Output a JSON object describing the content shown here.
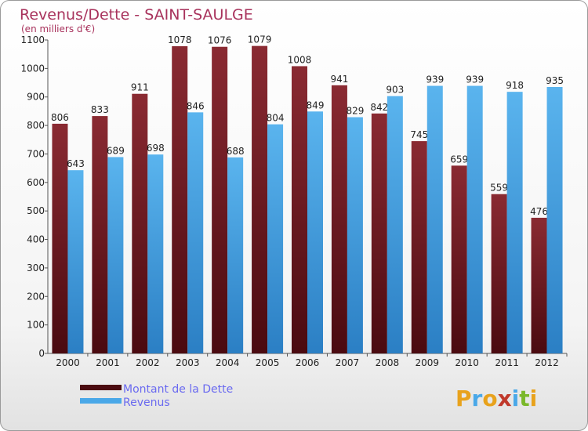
{
  "colors": {
    "debt": "#7a1c26",
    "debt_dark": "#4a0a10",
    "revenue": "#4aa8e8",
    "revenue_dark": "#2b7fc4",
    "title": "#a8325c",
    "legend_text": "#6a6af0"
  },
  "logo": {
    "text": "Proxiti",
    "letters": [
      "P",
      "r",
      "o",
      "x",
      "i",
      "t",
      "i"
    ],
    "letter_colors": [
      "#e8a21c",
      "#4aa8e8",
      "#e8a21c",
      "#c0392b",
      "#4aa8e8",
      "#7ab82a",
      "#e8a21c"
    ]
  },
  "chart_data": {
    "type": "bar",
    "title": "Revenus/Dette - SAINT-SAULGE",
    "subtitle": "(en milliers d'€)",
    "categories": [
      "2000",
      "2001",
      "2002",
      "2003",
      "2004",
      "2005",
      "2006",
      "2007",
      "2008",
      "2009",
      "2010",
      "2011",
      "2012"
    ],
    "series": [
      {
        "name": "Montant de la Dette",
        "values": [
          806,
          833,
          911,
          1078,
          1076,
          1079,
          1008,
          941,
          842,
          745,
          659,
          559,
          476
        ]
      },
      {
        "name": "Revenus",
        "values": [
          643,
          689,
          698,
          846,
          688,
          804,
          849,
          829,
          903,
          939,
          939,
          918,
          935
        ]
      }
    ],
    "ylim": [
      0,
      1100
    ],
    "yticks": [
      0,
      100,
      200,
      300,
      400,
      500,
      600,
      700,
      800,
      900,
      1000,
      1100
    ],
    "grid": false,
    "legend_position": "bottom-left"
  }
}
